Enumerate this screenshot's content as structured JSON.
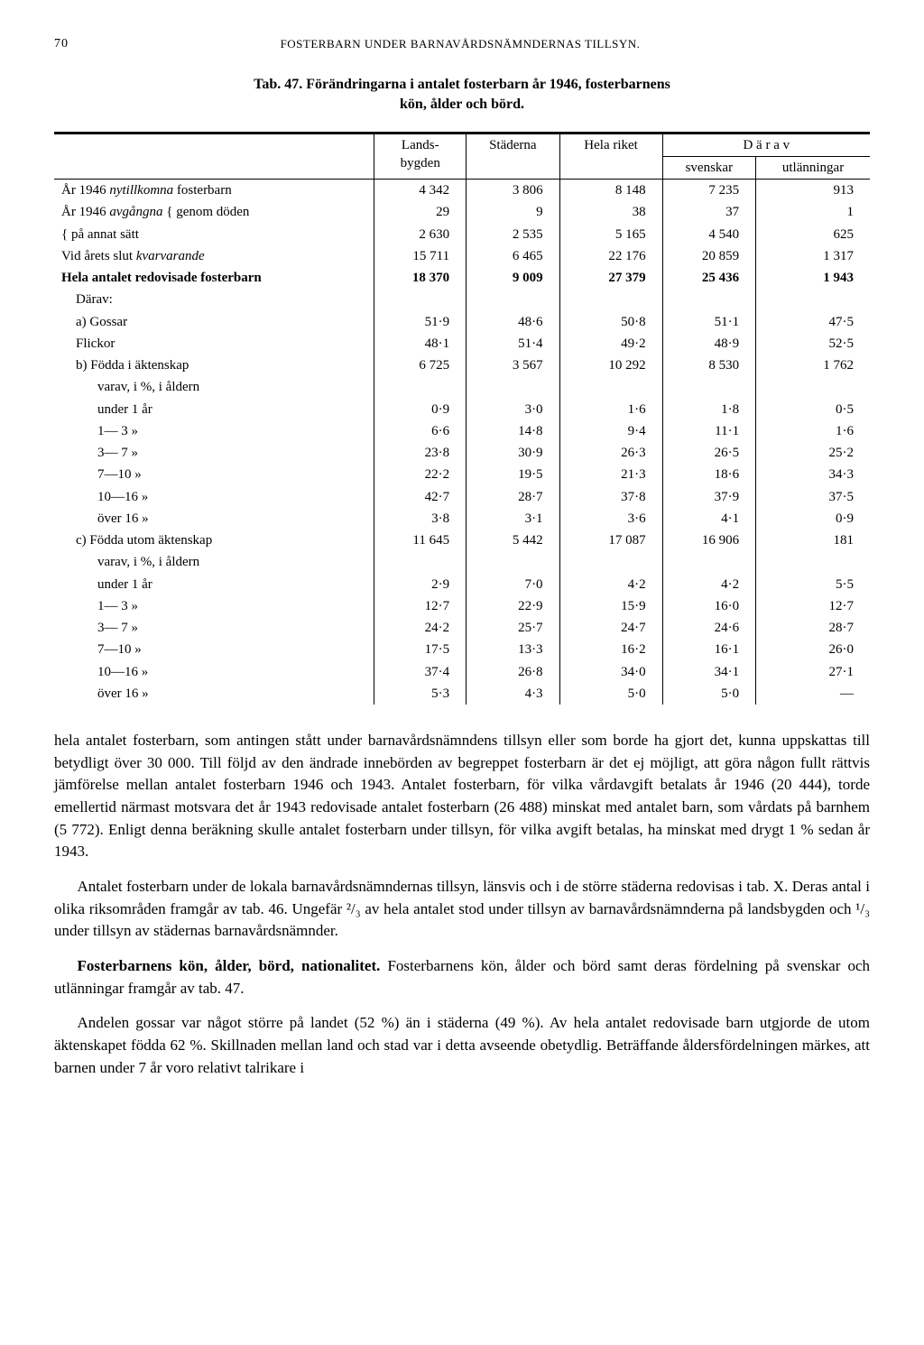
{
  "page_number": "70",
  "running_head": "FOSTERBARN UNDER BARNAVÅRDSNÄMNDERNAS TILLSYN.",
  "tab_title_line1": "Tab. 47.  Förändringarna i antalet fosterbarn år 1946, fosterbarnens",
  "tab_title_line2": "kön, ålder och börd.",
  "columns": {
    "landsbygden": "Lands-\nbygden",
    "staderna": "Städerna",
    "hela_riket": "Hela riket",
    "darav": "D ä r a v",
    "svenskar": "svenskar",
    "utlanningar": "utlänningar"
  },
  "rows": [
    {
      "label": "År 1946 nytillkomna fosterbarn",
      "italic_part": "nytillkomna",
      "vals": [
        "4 342",
        "3 806",
        "8 148",
        "7 235",
        "913"
      ]
    },
    {
      "label": "År 1946 avgångna { genom döden",
      "italic_part": "avgångna",
      "vals": [
        "29",
        "9",
        "38",
        "37",
        "1"
      ],
      "indent": 0
    },
    {
      "label": "                       { på annat sätt",
      "vals": [
        "2 630",
        "2 535",
        "5 165",
        "4 540",
        "625"
      ],
      "indent": 0
    },
    {
      "label": "Vid årets slut kvarvarande",
      "italic_part": "kvarvarande",
      "vals": [
        "15 711",
        "6 465",
        "22 176",
        "20 859",
        "1 317"
      ]
    },
    {
      "label": "Hela antalet redovisade fosterbarn",
      "vals": [
        "18 370",
        "9 009",
        "27 379",
        "25 436",
        "1 943"
      ],
      "heavy": true,
      "gap": true
    },
    {
      "label": "Därav:",
      "vals": [
        "",
        "",
        "",
        "",
        ""
      ],
      "indent": 1
    },
    {
      "label": "a) Gossar",
      "vals": [
        "51·9",
        "48·6",
        "50·8",
        "51·1",
        "47·5"
      ],
      "indent": 1
    },
    {
      "label": "    Flickor",
      "vals": [
        "48·1",
        "51·4",
        "49·2",
        "48·9",
        "52·5"
      ],
      "indent": 1
    },
    {
      "label": "b) Födda i äktenskap",
      "vals": [
        "6 725",
        "3 567",
        "10 292",
        "8 530",
        "1 762"
      ],
      "indent": 1,
      "gap": true
    },
    {
      "label": "varav, i %, i åldern",
      "vals": [
        "",
        "",
        "",
        "",
        ""
      ],
      "indent": 2
    },
    {
      "label": "under 1 år",
      "vals": [
        "0·9",
        "3·0",
        "1·6",
        "1·8",
        "0·5"
      ],
      "indent": 2
    },
    {
      "label": "1— 3  »",
      "vals": [
        "6·6",
        "14·8",
        "9·4",
        "11·1",
        "1·6"
      ],
      "indent": 2
    },
    {
      "label": "3— 7  »",
      "vals": [
        "23·8",
        "30·9",
        "26·3",
        "26·5",
        "25·2"
      ],
      "indent": 2
    },
    {
      "label": "7—10  »",
      "vals": [
        "22·2",
        "19·5",
        "21·3",
        "18·6",
        "34·3"
      ],
      "indent": 2
    },
    {
      "label": "10—16  »",
      "vals": [
        "42·7",
        "28·7",
        "37·8",
        "37·9",
        "37·5"
      ],
      "indent": 2
    },
    {
      "label": "över 16  »",
      "vals": [
        "3·8",
        "3·1",
        "3·6",
        "4·1",
        "0·9"
      ],
      "indent": 2
    },
    {
      "label": "c) Födda utom äktenskap",
      "vals": [
        "11 645",
        "5 442",
        "17 087",
        "16 906",
        "181"
      ],
      "indent": 1,
      "gap": true
    },
    {
      "label": "varav, i %, i åldern",
      "vals": [
        "",
        "",
        "",
        "",
        ""
      ],
      "indent": 2
    },
    {
      "label": "under 1 år",
      "vals": [
        "2·9",
        "7·0",
        "4·2",
        "4·2",
        "5·5"
      ],
      "indent": 2
    },
    {
      "label": "1— 3  »",
      "vals": [
        "12·7",
        "22·9",
        "15·9",
        "16·0",
        "12·7"
      ],
      "indent": 2
    },
    {
      "label": "3— 7  »",
      "vals": [
        "24·2",
        "25·7",
        "24·7",
        "24·6",
        "28·7"
      ],
      "indent": 2
    },
    {
      "label": "7—10  »",
      "vals": [
        "17·5",
        "13·3",
        "16·2",
        "16·1",
        "26·0"
      ],
      "indent": 2
    },
    {
      "label": "10—16  »",
      "vals": [
        "37·4",
        "26·8",
        "34·0",
        "34·1",
        "27·1"
      ],
      "indent": 2
    },
    {
      "label": "över 16  »",
      "vals": [
        "5·3",
        "4·3",
        "5·0",
        "5·0",
        "—"
      ],
      "indent": 2
    }
  ],
  "paragraphs": [
    "hela antalet fosterbarn, som antingen stått under barnavårdsnämndens tillsyn eller som borde ha gjort det, kunna uppskattas till betydligt över 30 000. Till följd av den ändrade innebörden av begreppet fosterbarn är det ej möjligt, att göra någon fullt rättvis jämförelse mellan antalet fosterbarn 1946 och 1943. Antalet fosterbarn, för vilka vårdavgift betalats år 1946 (20 444), torde emellertid närmast motsvara det år 1943 redovisade antalet fosterbarn (26 488) minskat med antalet barn, som vårdats på barnhem (5 772). Enligt denna beräkning skulle antalet fosterbarn under tillsyn, för vilka avgift betalas, ha minskat med drygt 1 % sedan år 1943.",
    "Antalet fosterbarn under de lokala barnavårdsnämndernas tillsyn, länsvis och i de större städerna redovisas i tab. X. Deras antal i olika riksområden framgår av tab. 46. Ungefär ²/₃ av hela antalet stod under tillsyn av barnavårdsnämnderna på landsbygden och ¹/₃ under tillsyn av städernas barnavårdsnämnder.",
    "Fosterbarnens kön, ålder, börd, nationalitet. Fosterbarnens kön, ålder och börd samt deras fördelning på svenskar och utlänningar framgår av tab. 47.",
    "Andelen gossar var något större på landet (52 %) än i städerna (49 %). Av hela antalet redovisade barn utgjorde de utom äktenskapet födda 62 %. Skillnaden mellan land och stad var i detta avseende obetydlig. Beträffande åldersfördelningen märkes, att barnen under 7 år voro relativt talrikare i"
  ],
  "para3_bold_lead": "Fosterbarnens kön, ålder, börd, nationalitet."
}
